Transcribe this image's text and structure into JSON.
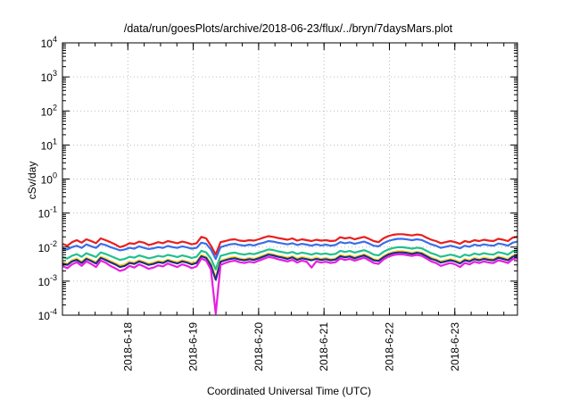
{
  "chart_data": {
    "type": "line",
    "title": "/data/run/goesPlots/archive/2018-06-23/flux/../bryn/7daysMars.plot",
    "xlabel": "Coordinated Universal Time (UTC)",
    "ylabel": "cSv/day",
    "yscale": "log",
    "ylim": [
      0.0001,
      10000
    ],
    "xlim": [
      "2018-06-17 00:00",
      "2018-06-23 23:00"
    ],
    "grid": true,
    "y_ticks": [
      {
        "value": 0.0001,
        "base": "10",
        "exp": "-4"
      },
      {
        "value": 0.001,
        "base": "10",
        "exp": "-3"
      },
      {
        "value": 0.01,
        "base": "10",
        "exp": "-2"
      },
      {
        "value": 0.1,
        "base": "10",
        "exp": "-1"
      },
      {
        "value": 1,
        "base": "10",
        "exp": "0"
      },
      {
        "value": 10,
        "base": "10",
        "exp": "1"
      },
      {
        "value": 100,
        "base": "10",
        "exp": "2"
      },
      {
        "value": 1000,
        "base": "10",
        "exp": "3"
      },
      {
        "value": 10000,
        "base": "10",
        "exp": "4"
      }
    ],
    "x_ticks": [
      "2018-6-18",
      "2018-6-19",
      "2018-6-20",
      "2018-6-21",
      "2018-6-22",
      "2018-6-23"
    ],
    "series": [
      {
        "color": "#e8201f",
        "values": [
          0.0125,
          0.011,
          0.014,
          0.016,
          0.0135,
          0.017,
          0.015,
          0.013,
          0.018,
          0.016,
          0.014,
          0.012,
          0.01,
          0.011,
          0.013,
          0.0125,
          0.0145,
          0.0135,
          0.0115,
          0.0125,
          0.014,
          0.013,
          0.015,
          0.014,
          0.013,
          0.0145,
          0.0135,
          0.012,
          0.013,
          0.02,
          0.018,
          0.011,
          0.006,
          0.014,
          0.015,
          0.0165,
          0.017,
          0.0155,
          0.015,
          0.016,
          0.0155,
          0.017,
          0.019,
          0.021,
          0.02,
          0.0185,
          0.0175,
          0.0165,
          0.018,
          0.0155,
          0.017,
          0.016,
          0.015,
          0.0165,
          0.0155,
          0.016,
          0.015,
          0.0155,
          0.0195,
          0.018,
          0.019,
          0.017,
          0.0185,
          0.02,
          0.0175,
          0.015,
          0.014,
          0.018,
          0.021,
          0.023,
          0.024,
          0.024,
          0.023,
          0.022,
          0.0235,
          0.0225,
          0.019,
          0.0165,
          0.015,
          0.013,
          0.014,
          0.015,
          0.014,
          0.0125,
          0.015,
          0.014,
          0.016,
          0.015,
          0.0165,
          0.0155,
          0.015,
          0.0175,
          0.0165,
          0.015,
          0.019,
          0.02
        ]
      },
      {
        "color": "#3b6ee8",
        "values": [
          0.009,
          0.0085,
          0.01,
          0.011,
          0.0095,
          0.012,
          0.0105,
          0.0095,
          0.0125,
          0.0115,
          0.01,
          0.009,
          0.008,
          0.0085,
          0.0095,
          0.009,
          0.0105,
          0.0095,
          0.0088,
          0.0092,
          0.01,
          0.0095,
          0.0108,
          0.01,
          0.0095,
          0.0105,
          0.0098,
          0.009,
          0.0095,
          0.0135,
          0.0125,
          0.0085,
          0.0045,
          0.01,
          0.011,
          0.012,
          0.0125,
          0.0115,
          0.011,
          0.0118,
          0.0112,
          0.0125,
          0.0135,
          0.015,
          0.0145,
          0.0135,
          0.0128,
          0.012,
          0.013,
          0.0115,
          0.0125,
          0.0118,
          0.011,
          0.012,
          0.0112,
          0.0118,
          0.011,
          0.0115,
          0.014,
          0.013,
          0.0138,
          0.0125,
          0.0135,
          0.0145,
          0.0128,
          0.011,
          0.0105,
          0.013,
          0.015,
          0.0165,
          0.0175,
          0.0175,
          0.0168,
          0.016,
          0.017,
          0.0162,
          0.014,
          0.012,
          0.011,
          0.0095,
          0.0102,
          0.011,
          0.0102,
          0.0092,
          0.011,
          0.0102,
          0.0118,
          0.011,
          0.012,
          0.0113,
          0.011,
          0.0128,
          0.012,
          0.011,
          0.0135,
          0.0145
        ]
      },
      {
        "color": "#22c08e",
        "values": [
          0.005,
          0.0046,
          0.0056,
          0.0062,
          0.0052,
          0.0066,
          0.0058,
          0.0051,
          0.007,
          0.0063,
          0.0055,
          0.0048,
          0.0042,
          0.0045,
          0.0052,
          0.0049,
          0.0057,
          0.0052,
          0.0047,
          0.005,
          0.0055,
          0.0052,
          0.0059,
          0.0055,
          0.0051,
          0.0057,
          0.0053,
          0.0048,
          0.0052,
          0.0078,
          0.007,
          0.0046,
          0.0022,
          0.0055,
          0.006,
          0.0066,
          0.0069,
          0.0063,
          0.006,
          0.0065,
          0.0062,
          0.0069,
          0.0076,
          0.0085,
          0.0082,
          0.0075,
          0.0071,
          0.0066,
          0.0072,
          0.0063,
          0.0069,
          0.0065,
          0.006,
          0.0066,
          0.0062,
          0.0065,
          0.006,
          0.0063,
          0.0078,
          0.0072,
          0.0077,
          0.0069,
          0.0075,
          0.0081,
          0.0071,
          0.006,
          0.0057,
          0.0072,
          0.0085,
          0.0094,
          0.0099,
          0.0099,
          0.0095,
          0.009,
          0.0096,
          0.0092,
          0.0078,
          0.0066,
          0.006,
          0.0052,
          0.0056,
          0.006,
          0.0056,
          0.005,
          0.006,
          0.0056,
          0.0065,
          0.006,
          0.0066,
          0.0062,
          0.006,
          0.0071,
          0.0066,
          0.006,
          0.0075,
          0.008
        ]
      },
      {
        "color": "#ffd21e",
        "values": [
          0.0036,
          0.0032,
          0.0041,
          0.0046,
          0.0037,
          0.0049,
          0.0042,
          0.0036,
          0.0052,
          0.0046,
          0.0039,
          0.0034,
          0.0029,
          0.0031,
          0.0037,
          0.0035,
          0.0041,
          0.0037,
          0.0033,
          0.0035,
          0.0039,
          0.0037,
          0.0043,
          0.0039,
          0.0036,
          0.0041,
          0.0038,
          0.0034,
          0.0037,
          0.0058,
          0.0052,
          0.0032,
          0.0013,
          0.004,
          0.0044,
          0.0049,
          0.0051,
          0.0046,
          0.0044,
          0.0048,
          0.0045,
          0.0051,
          0.0057,
          0.0064,
          0.0061,
          0.0056,
          0.0053,
          0.0049,
          0.0054,
          0.0046,
          0.0051,
          0.0048,
          0.0044,
          0.0049,
          0.0045,
          0.0048,
          0.0044,
          0.0046,
          0.0058,
          0.0054,
          0.0057,
          0.0051,
          0.0056,
          0.0061,
          0.0053,
          0.0044,
          0.0042,
          0.0054,
          0.0064,
          0.0071,
          0.0075,
          0.0075,
          0.0072,
          0.0068,
          0.0073,
          0.0069,
          0.0058,
          0.0049,
          0.0044,
          0.0038,
          0.0041,
          0.0044,
          0.0041,
          0.0036,
          0.0044,
          0.0041,
          0.0048,
          0.0044,
          0.0049,
          0.0046,
          0.0044,
          0.0053,
          0.0049,
          0.0044,
          0.0056,
          0.006
        ]
      },
      {
        "color": "#1c2e86",
        "values": [
          0.0033,
          0.003,
          0.0038,
          0.0042,
          0.0034,
          0.0045,
          0.0039,
          0.0033,
          0.0048,
          0.0042,
          0.0036,
          0.0031,
          0.0026,
          0.0028,
          0.0034,
          0.0032,
          0.0038,
          0.0034,
          0.003,
          0.0032,
          0.0036,
          0.0034,
          0.004,
          0.0036,
          0.0033,
          0.0038,
          0.0035,
          0.0031,
          0.0034,
          0.0054,
          0.0048,
          0.0029,
          0.0011,
          0.0037,
          0.0041,
          0.0045,
          0.0047,
          0.0043,
          0.0041,
          0.0044,
          0.0042,
          0.0047,
          0.0053,
          0.006,
          0.0057,
          0.0052,
          0.0049,
          0.0045,
          0.005,
          0.0042,
          0.0047,
          0.0044,
          0.0041,
          0.0045,
          0.0042,
          0.0044,
          0.0041,
          0.0043,
          0.0054,
          0.005,
          0.0053,
          0.0047,
          0.0052,
          0.0057,
          0.0049,
          0.0041,
          0.0039,
          0.005,
          0.006,
          0.0066,
          0.007,
          0.007,
          0.0067,
          0.0063,
          0.0068,
          0.0064,
          0.0054,
          0.0045,
          0.0041,
          0.0035,
          0.0038,
          0.0041,
          0.0038,
          0.0033,
          0.0041,
          0.0038,
          0.0044,
          0.0041,
          0.0045,
          0.0042,
          0.0041,
          0.0049,
          0.0045,
          0.0041,
          0.0052,
          0.0056
        ]
      },
      {
        "color": "#e81ee0",
        "values": [
          0.0028,
          0.0024,
          0.0031,
          0.0036,
          0.0028,
          0.0038,
          0.0032,
          0.0026,
          0.004,
          0.0035,
          0.0028,
          0.0024,
          0.002,
          0.0022,
          0.0028,
          0.0025,
          0.0031,
          0.0027,
          0.0023,
          0.0025,
          0.0029,
          0.0027,
          0.0033,
          0.0029,
          0.0026,
          0.0031,
          0.0028,
          0.0024,
          0.0027,
          0.0046,
          0.004,
          0.0022,
          0.00011,
          0.003,
          0.0034,
          0.0038,
          0.004,
          0.0036,
          0.0034,
          0.0037,
          0.0035,
          0.004,
          0.0045,
          0.0051,
          0.0049,
          0.0044,
          0.0041,
          0.0038,
          0.0042,
          0.0035,
          0.004,
          0.0037,
          0.0025,
          0.0038,
          0.0035,
          0.0037,
          0.0034,
          0.0036,
          0.0046,
          0.0042,
          0.0045,
          0.004,
          0.0044,
          0.0049,
          0.0041,
          0.0034,
          0.0032,
          0.0043,
          0.0052,
          0.0058,
          0.0061,
          0.0061,
          0.0058,
          0.0055,
          0.0059,
          0.0055,
          0.0046,
          0.0038,
          0.0034,
          0.0028,
          0.0031,
          0.0034,
          0.0031,
          0.0026,
          0.0034,
          0.0031,
          0.0037,
          0.0034,
          0.0038,
          0.0035,
          0.0034,
          0.0041,
          0.0038,
          0.0034,
          0.0044,
          0.0048
        ]
      }
    ]
  }
}
